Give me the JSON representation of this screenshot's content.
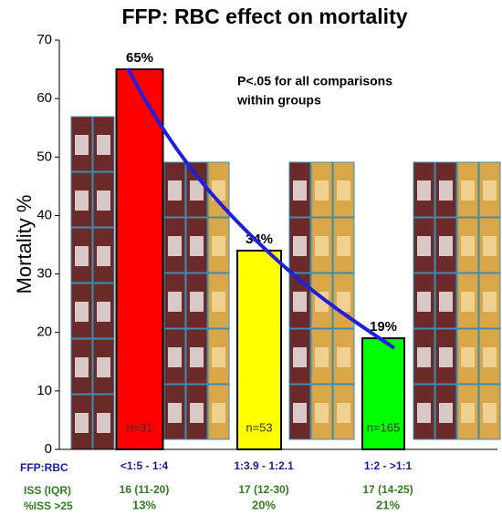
{
  "chart_data": {
    "type": "bar",
    "title": "FFP: RBC effect on mortality",
    "y_label": "Mortality %",
    "annotation": [
      "P<.05 for all comparisons",
      "within groups"
    ],
    "categories": [
      "<1:5 - 1:4",
      "1:3.9 - 1:2.1",
      "1:2 - >1:1"
    ],
    "values": [
      65,
      34,
      19
    ],
    "value_labels": [
      "65%",
      "34%",
      "19%"
    ],
    "colors": [
      "#ff0000",
      "#ffff00",
      "#00ff00"
    ],
    "n_labels": [
      "n=31",
      "n=53",
      "n=165"
    ],
    "ylim": [
      0,
      70
    ],
    "yticks": [
      0,
      10,
      20,
      30,
      40,
      50,
      60,
      70
    ],
    "row_labels": [
      "FFP:RBC",
      "ISS (IQR)",
      "%ISS >25"
    ],
    "iss": [
      "16 (11-20)",
      "17 (12-30)",
      "17 (14-25)"
    ],
    "iss_pct": [
      "13%",
      "20%",
      "21%"
    ]
  }
}
